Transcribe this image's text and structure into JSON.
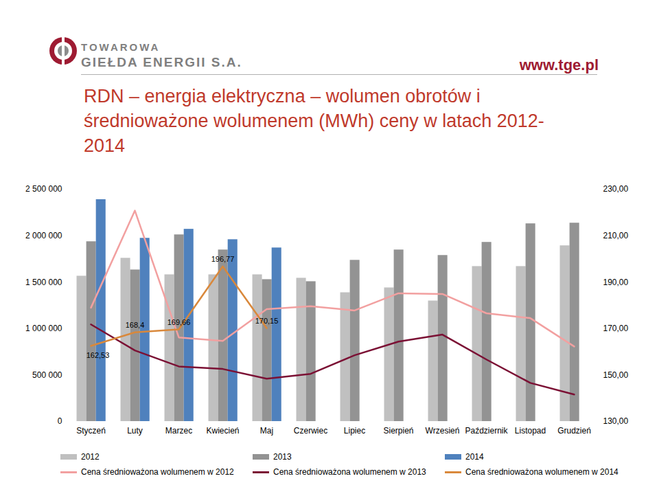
{
  "header": {
    "logo": [
      "TOWAROWA",
      "GIEŁDA ENERGII S.A."
    ],
    "url": "www.tge.pl"
  },
  "chart_data": {
    "type": "bar",
    "title": "RDN – energia elektryczna – wolumen obrotów i średnioważone wolumenem (MWh) ceny w latach 2012-2014",
    "categories": [
      "Styczeń",
      "Luty",
      "Marzec",
      "Kwiecień",
      "Maj",
      "Czerwiec",
      "Lipiec",
      "Sierpień",
      "Wrzesień",
      "Październik",
      "Listopad",
      "Grudzień"
    ],
    "ylim": [
      0,
      2500000
    ],
    "yticks": [
      {
        "value": 0,
        "label": "0"
      },
      {
        "value": 500000,
        "label": "500 000"
      },
      {
        "value": 1000000,
        "label": "1 000 000"
      },
      {
        "value": 1500000,
        "label": "1 500 000"
      },
      {
        "value": 2000000,
        "label": "2 000 000"
      },
      {
        "value": 2500000,
        "label": "2 500 000"
      }
    ],
    "y2lim": [
      130,
      230
    ],
    "y2ticks": [
      {
        "value": 130,
        "label": "130,00"
      },
      {
        "value": 150,
        "label": "150,00"
      },
      {
        "value": 170,
        "label": "170,00"
      },
      {
        "value": 190,
        "label": "190,00"
      },
      {
        "value": 210,
        "label": "210,00"
      },
      {
        "value": 230,
        "label": "230,00"
      }
    ],
    "grid": false,
    "legend": "bottom",
    "series": [
      {
        "name": "2012",
        "type": "bar",
        "color": "#c0c0c0",
        "values": [
          1565000,
          1758000,
          1580000,
          1580000,
          1580000,
          1543000,
          1387000,
          1439000,
          1298000,
          1669000,
          1669000,
          1892000
        ]
      },
      {
        "name": "2013",
        "type": "bar",
        "color": "#939393",
        "values": [
          1936000,
          1632000,
          2010000,
          1847000,
          1528000,
          1506000,
          1736000,
          1847000,
          1788000,
          1929000,
          2129000,
          2136000
        ]
      },
      {
        "name": "2014",
        "type": "bar",
        "color": "#4f81bd",
        "values": [
          2389000,
          1973000,
          2070000,
          1958000,
          1869000,
          null,
          null,
          null,
          null,
          null,
          null,
          null
        ]
      },
      {
        "name": "Cena średnioważona wolumenem w 2012",
        "type": "line",
        "axis": "y2",
        "color": "#f2a0a0",
        "values": [
          179.0,
          220.8,
          166.2,
          164.7,
          178.4,
          179.6,
          177.8,
          185.2,
          184.9,
          176.6,
          174.5,
          162.3
        ]
      },
      {
        "name": "Cena średnioważona wolumenem w 2013",
        "type": "line",
        "axis": "y2",
        "color": "#7b1034",
        "values": [
          171.8,
          160.6,
          153.7,
          152.6,
          148.4,
          150.5,
          158.5,
          164.4,
          167.4,
          156.7,
          146.6,
          141.6
        ]
      },
      {
        "name": "Cena średnioważona wolumenem w 2014",
        "type": "line",
        "axis": "y2",
        "color": "#d9883b",
        "data_labels": true,
        "values": [
          162.53,
          168.4,
          169.66,
          196.77,
          170.15,
          null,
          null,
          null,
          null,
          null,
          null,
          null
        ],
        "value_labels": [
          "162,53",
          "168,4",
          "169,66",
          "196,77",
          "170,15",
          null,
          null,
          null,
          null,
          null,
          null,
          null
        ]
      }
    ]
  }
}
